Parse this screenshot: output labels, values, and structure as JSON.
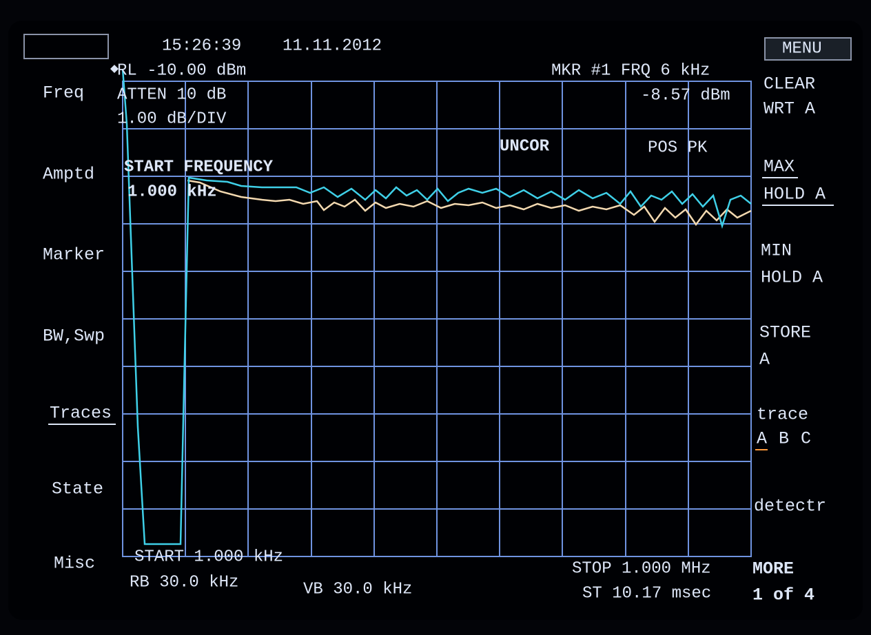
{
  "header": {
    "time": "15:26:39",
    "date": "11.11.2012"
  },
  "display": {
    "reference_level": "RL -10.00 dBm",
    "attenuation": "ATTEN 10 dB",
    "scale": "1.00 dB/DIV",
    "marker": "MKR #1 FRQ 6 kHz",
    "marker_level": "-8.57 dBm",
    "uncor": "UNCOR",
    "detector_mode": "POS PK",
    "active_function": "START FREQUENCY",
    "active_value": "1.000 kHz",
    "start": "START  1.000 kHz",
    "rbw": "RB 30.0 kHz",
    "vbw": "VB 30.0 kHz",
    "stop": "STOP 1.000 MHz",
    "sweep_time": "ST 10.17 msec"
  },
  "left_menu": [
    "Freq",
    "Amptd",
    "Marker",
    "BW,Swp",
    "Traces",
    "State",
    "Misc"
  ],
  "right_menu": {
    "title": "MENU",
    "clear_write": [
      "CLEAR",
      "WRT A"
    ],
    "max_hold": [
      "MAX",
      "HOLD A"
    ],
    "min_hold": [
      "MIN",
      "HOLD A"
    ],
    "store": [
      "STORE",
      "A"
    ],
    "trace": "trace",
    "trace_letters": [
      "A",
      "B",
      "C"
    ],
    "detector": "detectr",
    "more": [
      "MORE",
      "1 of 4"
    ]
  }
}
